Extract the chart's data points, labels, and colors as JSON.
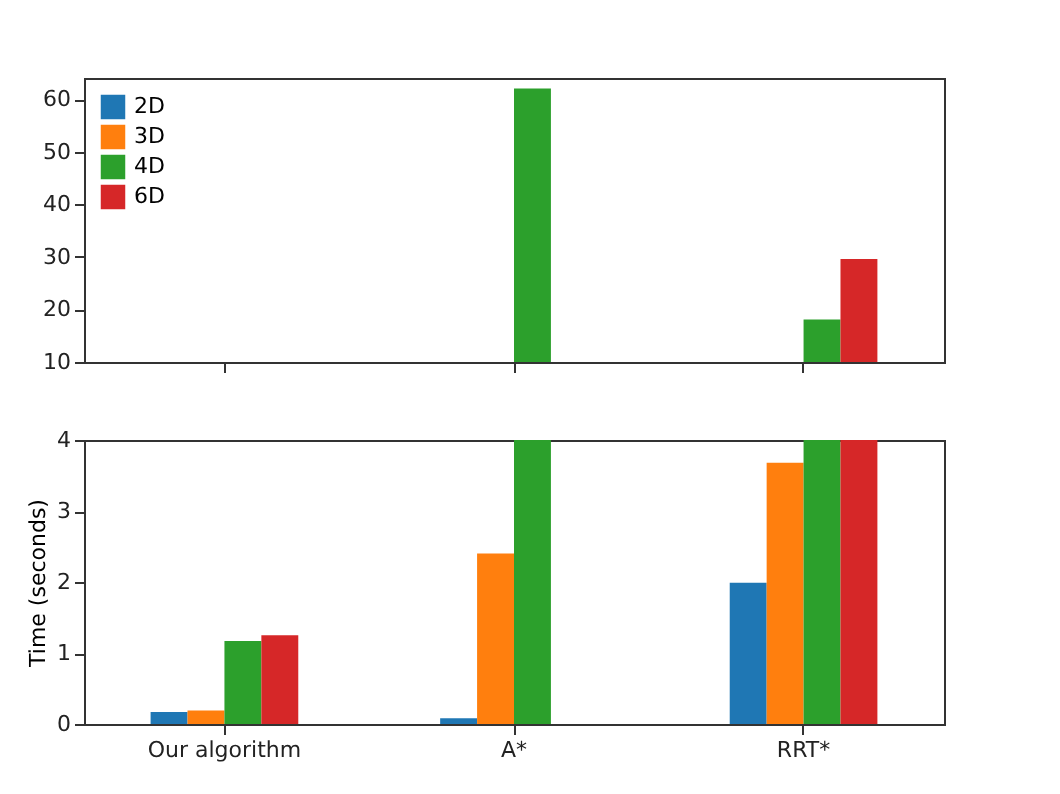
{
  "chart_data": [
    {
      "type": "bar",
      "categories": [
        "Our algorithm",
        "A*",
        "RRT*"
      ],
      "ylim": [
        10,
        64
      ],
      "yticks": [
        10,
        20,
        30,
        40,
        50,
        60
      ],
      "tick_labels": "y",
      "grid": false,
      "legend": "top left",
      "series": [
        {
          "name": "2D",
          "color": "#1f77b4",
          "values": [
            null,
            null,
            null
          ]
        },
        {
          "name": "3D",
          "color": "#ff7f0e",
          "values": [
            null,
            null,
            null
          ]
        },
        {
          "name": "4D",
          "color": "#2ca02c",
          "values": [
            null,
            62,
            18.1
          ]
        },
        {
          "name": "6D",
          "color": "#d62728",
          "values": [
            null,
            null,
            29.6
          ]
        }
      ]
    },
    {
      "type": "bar",
      "categories": [
        "Our algorithm",
        "A*",
        "RRT*"
      ],
      "ylim": [
        0,
        4
      ],
      "yticks": [
        0,
        1,
        2,
        3,
        4
      ],
      "ylabel": "Time (seconds)",
      "grid": false,
      "legend": false,
      "series": [
        {
          "color": "#1f77b4",
          "values": [
            0.17,
            0.08,
            1.99
          ]
        },
        {
          "color": "#ff7f0e",
          "values": [
            0.19,
            2.4,
            3.68
          ]
        },
        {
          "color": "#2ca02c",
          "values": [
            1.17,
            4,
            4
          ]
        },
        {
          "color": "#d62728",
          "values": [
            1.25,
            null,
            4
          ]
        }
      ]
    }
  ]
}
